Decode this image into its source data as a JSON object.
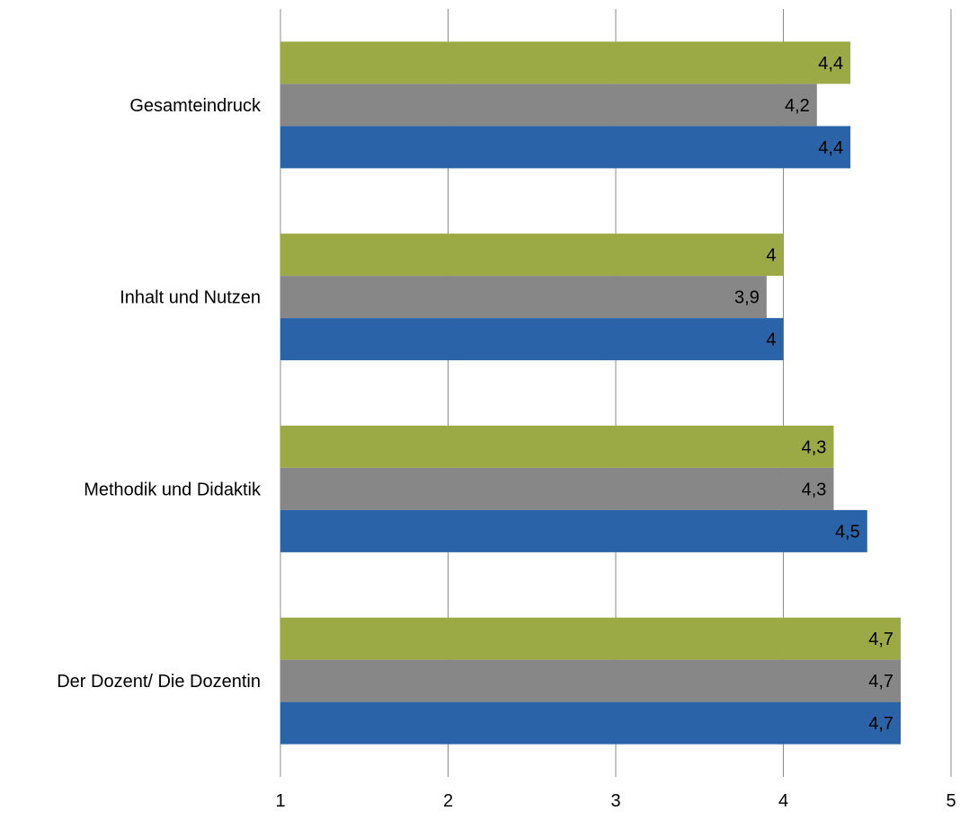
{
  "chart_data": {
    "type": "bar",
    "orientation": "horizontal",
    "title": "",
    "xlabel": "",
    "ylabel": "",
    "xlim": [
      1,
      5
    ],
    "x_ticks": [
      1,
      2,
      3,
      4,
      5
    ],
    "x_tick_labels": [
      "1",
      "2",
      "3",
      "4",
      "5"
    ],
    "grid": "vertical",
    "legend": "none",
    "categories": [
      "Gesamteindruck",
      "Inhalt und Nutzen",
      "Methodik und Didaktik",
      "Der Dozent/ Die Dozentin"
    ],
    "series": [
      {
        "color": "#9BAA44",
        "values": [
          4.4,
          4.0,
          4.3,
          4.7
        ],
        "labels": [
          "4,4",
          "4",
          "4,3",
          "4,7"
        ]
      },
      {
        "color": "#878787",
        "values": [
          4.2,
          3.9,
          4.3,
          4.7
        ],
        "labels": [
          "4,2",
          "3,9",
          "4,3",
          "4,7"
        ]
      },
      {
        "color": "#2B63A8",
        "values": [
          4.4,
          4.0,
          4.5,
          4.7
        ],
        "labels": [
          "4,4",
          "4",
          "4,5",
          "4,7"
        ]
      }
    ]
  }
}
